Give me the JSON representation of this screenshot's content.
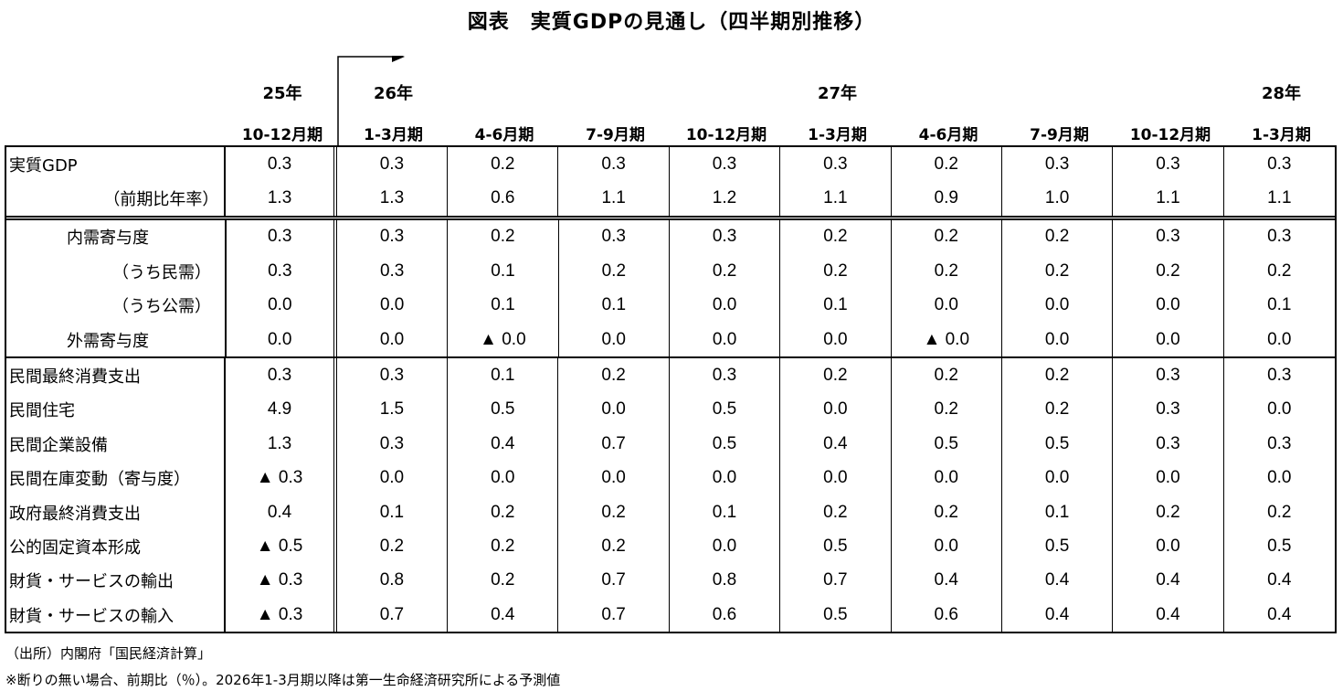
{
  "title": "図表　実質GDPの見通し（四半期別推移）",
  "years": [
    {
      "label": "25年",
      "col": 0
    },
    {
      "label": "26年",
      "col": 1
    },
    {
      "label": "27年",
      "col": 5
    },
    {
      "label": "28年",
      "col": 9
    }
  ],
  "periods": [
    "10-12月期",
    "1-3月期",
    "4-6月期",
    "7-9月期",
    "10-12月期",
    "1-3月期",
    "4-6月期",
    "7-9月期",
    "10-12月期",
    "1-3月期"
  ],
  "sections": [
    {
      "rows": [
        {
          "label": "実質GDP",
          "indent": 0,
          "values": [
            "0.3",
            "0.3",
            "0.2",
            "0.3",
            "0.3",
            "0.3",
            "0.2",
            "0.3",
            "0.3",
            "0.3"
          ]
        },
        {
          "label": "（前期比年率）",
          "indent": "right",
          "values": [
            "1.3",
            "1.3",
            "0.6",
            "1.1",
            "1.2",
            "1.1",
            "0.9",
            "1.0",
            "1.1",
            "1.1"
          ]
        }
      ]
    },
    {
      "rows": [
        {
          "label": "内需寄与度",
          "indent": 1,
          "values": [
            "0.3",
            "0.3",
            "0.2",
            "0.3",
            "0.3",
            "0.2",
            "0.2",
            "0.2",
            "0.3",
            "0.3"
          ]
        },
        {
          "label": "（うち民需）",
          "indent": 2,
          "values": [
            "0.3",
            "0.3",
            "0.1",
            "0.2",
            "0.2",
            "0.2",
            "0.2",
            "0.2",
            "0.2",
            "0.2"
          ]
        },
        {
          "label": "（うち公需）",
          "indent": 2,
          "values": [
            "0.0",
            "0.0",
            "0.1",
            "0.1",
            "0.0",
            "0.1",
            "0.0",
            "0.0",
            "0.0",
            "0.1"
          ]
        },
        {
          "label": "外需寄与度",
          "indent": 1,
          "values": [
            "0.0",
            "0.0",
            "▲ 0.0",
            "0.0",
            "0.0",
            "0.0",
            "▲ 0.0",
            "0.0",
            "0.0",
            "0.0"
          ]
        }
      ]
    },
    {
      "rows": [
        {
          "label": "民間最終消費支出",
          "indent": 0,
          "values": [
            "0.3",
            "0.3",
            "0.1",
            "0.2",
            "0.3",
            "0.2",
            "0.2",
            "0.2",
            "0.3",
            "0.3"
          ]
        },
        {
          "label": "民間住宅",
          "indent": 0,
          "values": [
            "4.9",
            "1.5",
            "0.5",
            "0.0",
            "0.5",
            "0.0",
            "0.2",
            "0.2",
            "0.3",
            "0.0"
          ]
        },
        {
          "label": "民間企業設備",
          "indent": 0,
          "values": [
            "1.3",
            "0.3",
            "0.4",
            "0.7",
            "0.5",
            "0.4",
            "0.5",
            "0.5",
            "0.3",
            "0.3"
          ]
        },
        {
          "label": "民間在庫変動（寄与度）",
          "indent": 0,
          "values": [
            "▲ 0.3",
            "0.0",
            "0.0",
            "0.0",
            "0.0",
            "0.0",
            "0.0",
            "0.0",
            "0.0",
            "0.0"
          ]
        },
        {
          "label": "政府最終消費支出",
          "indent": 0,
          "values": [
            "0.4",
            "0.1",
            "0.2",
            "0.2",
            "0.1",
            "0.2",
            "0.2",
            "0.1",
            "0.2",
            "0.2"
          ]
        },
        {
          "label": "公的固定資本形成",
          "indent": 0,
          "values": [
            "▲ 0.5",
            "0.2",
            "0.2",
            "0.2",
            "0.0",
            "0.5",
            "0.0",
            "0.5",
            "0.0",
            "0.5"
          ]
        },
        {
          "label": "財貨・サービスの輸出",
          "indent": 0,
          "values": [
            "▲ 0.3",
            "0.8",
            "0.2",
            "0.7",
            "0.8",
            "0.7",
            "0.4",
            "0.4",
            "0.4",
            "0.4"
          ]
        },
        {
          "label": "財貨・サービスの輸入",
          "indent": 0,
          "values": [
            "▲ 0.3",
            "0.7",
            "0.4",
            "0.7",
            "0.6",
            "0.5",
            "0.6",
            "0.4",
            "0.4",
            "0.4"
          ]
        }
      ]
    }
  ],
  "notes": {
    "source": "（出所）内閣府「国民経済計算」",
    "footnote": "※断りの無い場合、前期比（％）。2026年1-3月期以降は第一生命経済研究所による予測値"
  }
}
